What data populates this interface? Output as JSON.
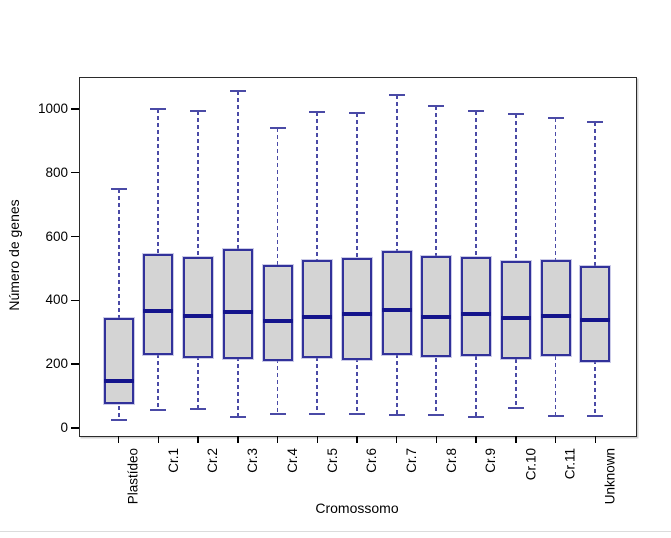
{
  "figure": {
    "ylabel": "Número de genes",
    "xlabel": "Cromossomo"
  },
  "chart_data": {
    "type": "boxplot",
    "title": "",
    "xlabel": "Cromossomo",
    "ylabel": "Número de genes",
    "grid": false,
    "legend": null,
    "ylim": [
      -22,
      1100
    ],
    "yticks": [
      0,
      200,
      400,
      600,
      800,
      1000
    ],
    "categories": [
      "Plastídeo",
      "Cr.1",
      "Cr.2",
      "Cr.3",
      "Cr.4",
      "Cr.5",
      "Cr.6",
      "Cr.7",
      "Cr.8",
      "Cr.9",
      "Cr.10",
      "Cr.11",
      "Unknown"
    ],
    "boxes": [
      {
        "label": "Plastídeo",
        "min": 25,
        "q1": 75,
        "median": 148,
        "q3": 345,
        "max": 750
      },
      {
        "label": "Cr.1",
        "min": 55,
        "q1": 230,
        "median": 367,
        "q3": 545,
        "max": 1000
      },
      {
        "label": "Cr.2",
        "min": 60,
        "q1": 220,
        "median": 350,
        "q3": 535,
        "max": 995
      },
      {
        "label": "Cr.3",
        "min": 35,
        "q1": 215,
        "median": 362,
        "q3": 560,
        "max": 1055
      },
      {
        "label": "Cr.4",
        "min": 45,
        "q1": 210,
        "median": 335,
        "q3": 510,
        "max": 940
      },
      {
        "label": "Cr.5",
        "min": 45,
        "q1": 218,
        "median": 347,
        "q3": 527,
        "max": 990
      },
      {
        "label": "Cr.6",
        "min": 45,
        "q1": 213,
        "median": 357,
        "q3": 532,
        "max": 987
      },
      {
        "label": "Cr.7",
        "min": 40,
        "q1": 230,
        "median": 370,
        "q3": 555,
        "max": 1045
      },
      {
        "label": "Cr.8",
        "min": 40,
        "q1": 223,
        "median": 348,
        "q3": 540,
        "max": 1008
      },
      {
        "label": "Cr.9",
        "min": 35,
        "q1": 225,
        "median": 358,
        "q3": 535,
        "max": 992
      },
      {
        "label": "Cr.10",
        "min": 62,
        "q1": 215,
        "median": 345,
        "q3": 523,
        "max": 985
      },
      {
        "label": "Cr.11",
        "min": 38,
        "q1": 225,
        "median": 352,
        "q3": 525,
        "max": 970
      },
      {
        "label": "Unknown",
        "min": 38,
        "q1": 208,
        "median": 338,
        "q3": 508,
        "max": 958
      }
    ]
  },
  "style": {
    "box_fill": "#d4d4d4",
    "box_border": "#31319a",
    "box_halo": "rgba(140,140,205,0.45)",
    "median_color": "#14148c",
    "whisker_color": "#4a4aa6",
    "axis_color": "#000000",
    "divider_color": "#dcdcdc"
  }
}
